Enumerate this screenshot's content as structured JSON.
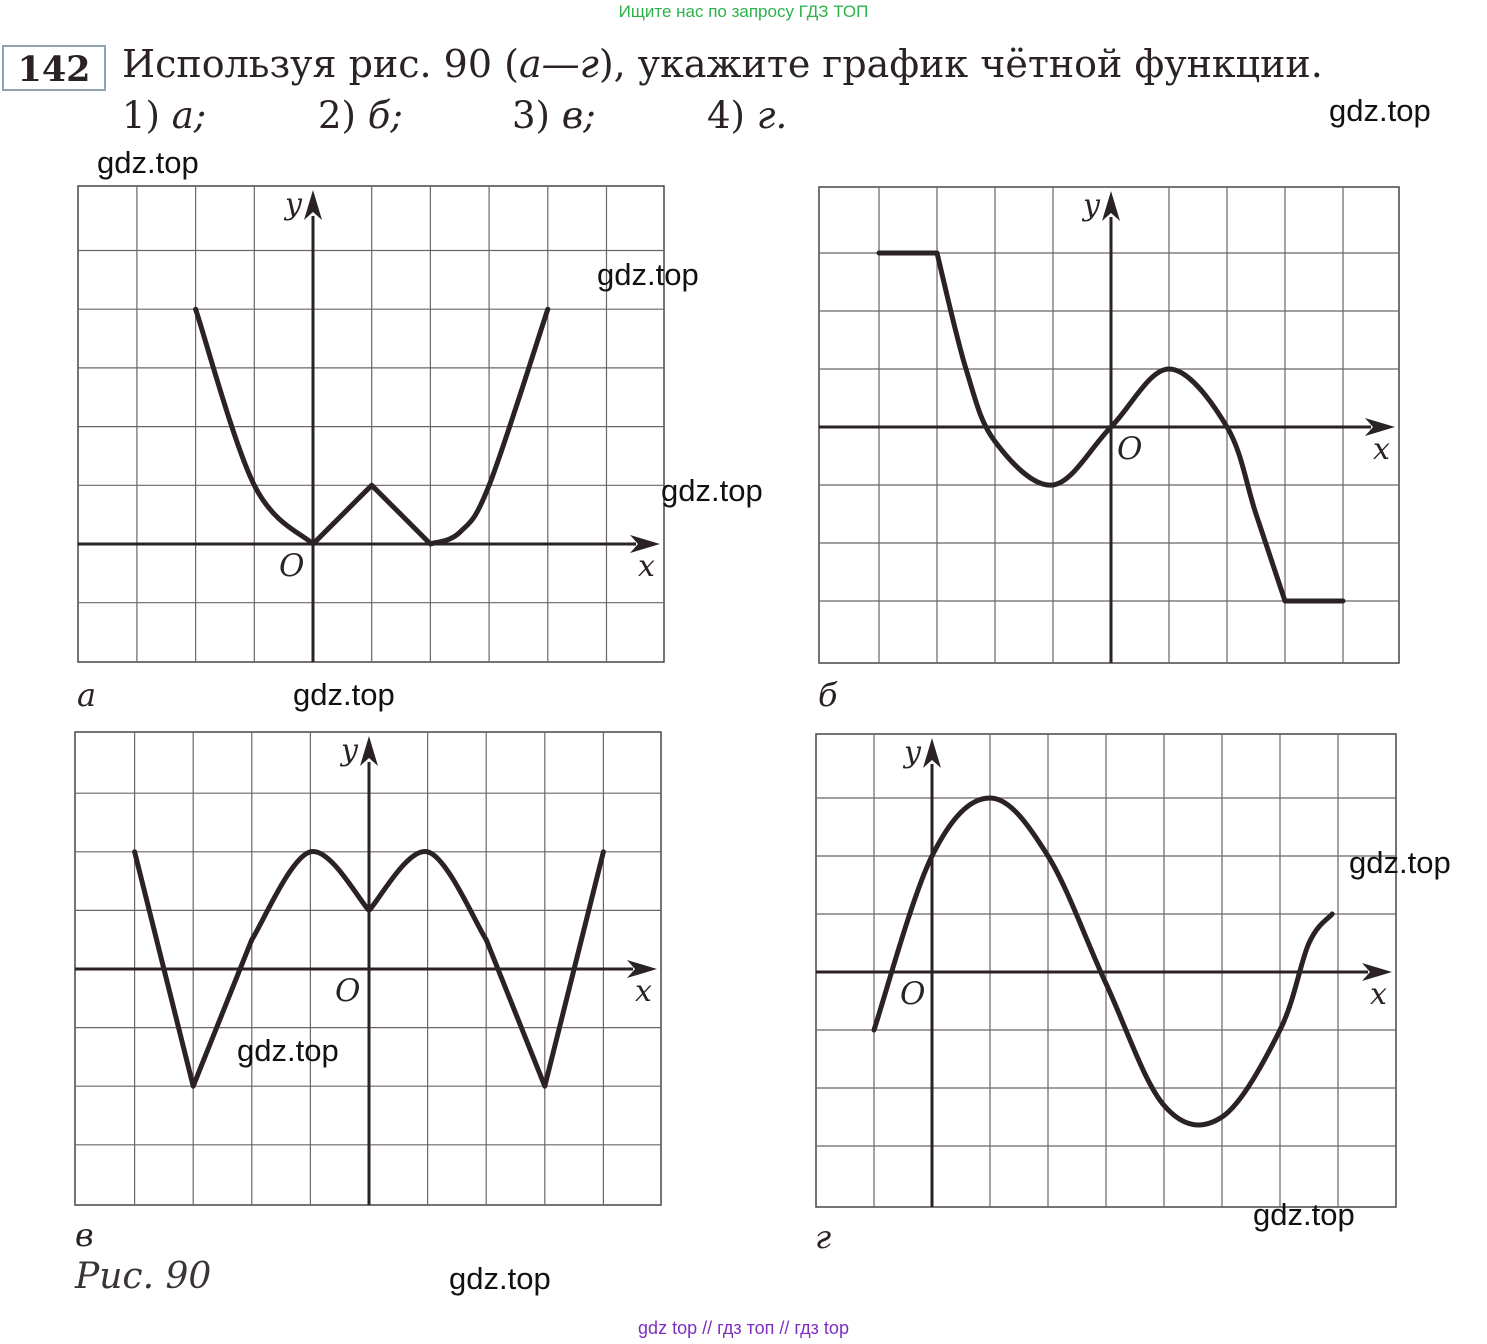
{
  "top_banner": "Ищите нас по запросу ГДЗ ТОП",
  "problem": {
    "number": "142",
    "text_before": "Используя рис. 90 (",
    "text_range": "а—г",
    "text_after": "), укажите график чётной функции.",
    "options": [
      {
        "num": "1)",
        "letter": "а;"
      },
      {
        "num": "2)",
        "letter": "б;"
      },
      {
        "num": "3)",
        "letter": "в;"
      },
      {
        "num": "4)",
        "letter": "г."
      }
    ]
  },
  "watermark": "gdz.top",
  "axis_labels": {
    "x": "x",
    "y": "y",
    "origin": "O"
  },
  "chart_data": [
    {
      "type": "line",
      "panel": "а",
      "xlim": [
        -4,
        6
      ],
      "ylim": [
        -2,
        6
      ],
      "grid": true,
      "points": [
        [
          -2,
          4
        ],
        [
          -1,
          1
        ],
        [
          0,
          0
        ],
        [
          0.5,
          0.5
        ],
        [
          1,
          1
        ],
        [
          1.5,
          0.5
        ],
        [
          2,
          0
        ],
        [
          2.5,
          0.2
        ],
        [
          3,
          1
        ],
        [
          4,
          4
        ]
      ]
    },
    {
      "type": "line",
      "panel": "б",
      "xlim": [
        -5,
        5
      ],
      "ylim": [
        -4,
        4
      ],
      "grid": true,
      "points": [
        [
          -4,
          3
        ],
        [
          -3,
          3
        ],
        [
          -2.5,
          1
        ],
        [
          -2,
          -0.25
        ],
        [
          -1,
          -1
        ],
        [
          0,
          0
        ],
        [
          1,
          1
        ],
        [
          2,
          0
        ],
        [
          2.5,
          -1.5
        ],
        [
          3,
          -3
        ],
        [
          4,
          -3
        ]
      ]
    },
    {
      "type": "line",
      "panel": "в",
      "xlim": [
        -5,
        5
      ],
      "ylim": [
        -4,
        4
      ],
      "grid": true,
      "points": [
        [
          -4,
          2
        ],
        [
          -3,
          -2
        ],
        [
          -2,
          0.5
        ],
        [
          -1,
          2
        ],
        [
          0,
          1
        ],
        [
          1,
          2
        ],
        [
          2,
          0.5
        ],
        [
          3,
          -2
        ],
        [
          4,
          2
        ]
      ]
    },
    {
      "type": "line",
      "panel": "г",
      "xlim": [
        -2,
        8
      ],
      "ylim": [
        -4,
        4
      ],
      "grid": true,
      "points": [
        [
          -1,
          -1
        ],
        [
          0,
          2
        ],
        [
          1,
          3
        ],
        [
          2,
          2
        ],
        [
          3,
          -0.2
        ],
        [
          4,
          -2.3
        ],
        [
          5,
          -2.5
        ],
        [
          6,
          -1
        ],
        [
          6.5,
          0.5
        ],
        [
          6.9,
          1
        ]
      ]
    }
  ],
  "caption": "Рис. 90",
  "bottom_banner": "gdz top  //  гдз топ  //  гдз top"
}
